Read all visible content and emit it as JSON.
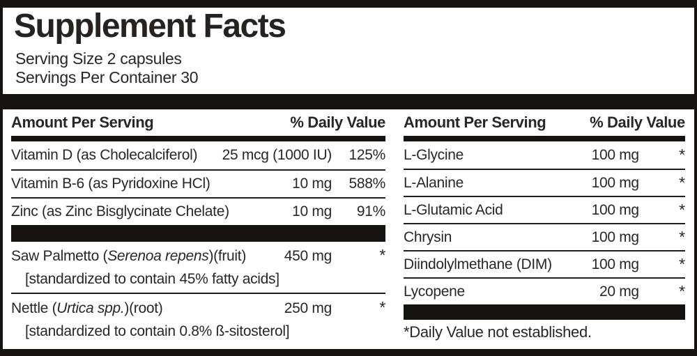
{
  "colors": {
    "bar": "#161212",
    "line": "#211d1c",
    "text": "#2a2625",
    "bg": "#ffffff"
  },
  "header": {
    "title": "Supplement Facts",
    "serving_size": "Serving Size 2 capsules",
    "servings_per_container": "Servings Per Container 30"
  },
  "columns": [
    {
      "id": "left",
      "header": {
        "amount_label": "Amount Per Serving",
        "dv_label": "% Daily Value"
      },
      "items": [
        {
          "kind": "row",
          "name": "Vitamin D (as Cholecalciferol)",
          "amount": "25 mcg (1000 IU)",
          "dv": "125%"
        },
        {
          "kind": "row",
          "name": "Vitamin B-6 (as Pyridoxine HCl)",
          "amount": "10 mg",
          "dv": "588%"
        },
        {
          "kind": "row",
          "name": "Zinc (as Zinc Bisglycinate Chelate)",
          "amount": "10 mg",
          "dv": "91%"
        },
        {
          "kind": "bar"
        },
        {
          "kind": "row",
          "name": "Saw Palmetto (",
          "name_italic": "Serenoa repens",
          "name_after": ")(fruit)",
          "amount": "450 mg",
          "dv": "*",
          "sub": "[standardized to contain 45% fatty acids]"
        },
        {
          "kind": "row",
          "name": "Nettle (",
          "name_italic": "Urtica spp.",
          "name_after": ")(root)",
          "amount": "250 mg",
          "dv": "*",
          "sub": "[standardized to contain 0.8% ß-sitosterol]"
        }
      ]
    },
    {
      "id": "right",
      "header": {
        "amount_label": "Amount Per Serving",
        "dv_label": "% Daily Value"
      },
      "items": [
        {
          "kind": "row",
          "name": "L-Glycine",
          "amount": "100 mg",
          "dv": "*"
        },
        {
          "kind": "row",
          "name": "L-Alanine",
          "amount": "100 mg",
          "dv": "*"
        },
        {
          "kind": "row",
          "name": "L-Glutamic Acid",
          "amount": "100 mg",
          "dv": "*"
        },
        {
          "kind": "row",
          "name": "Chrysin",
          "amount": "100 mg",
          "dv": "*"
        },
        {
          "kind": "row",
          "name": "Diindolylmethane (DIM)",
          "amount": "100 mg",
          "dv": "*"
        },
        {
          "kind": "row",
          "name": "Lycopene",
          "amount": "20 mg",
          "dv": "*"
        },
        {
          "kind": "bar"
        },
        {
          "kind": "footnote",
          "text": "*Daily Value not established."
        }
      ]
    }
  ]
}
